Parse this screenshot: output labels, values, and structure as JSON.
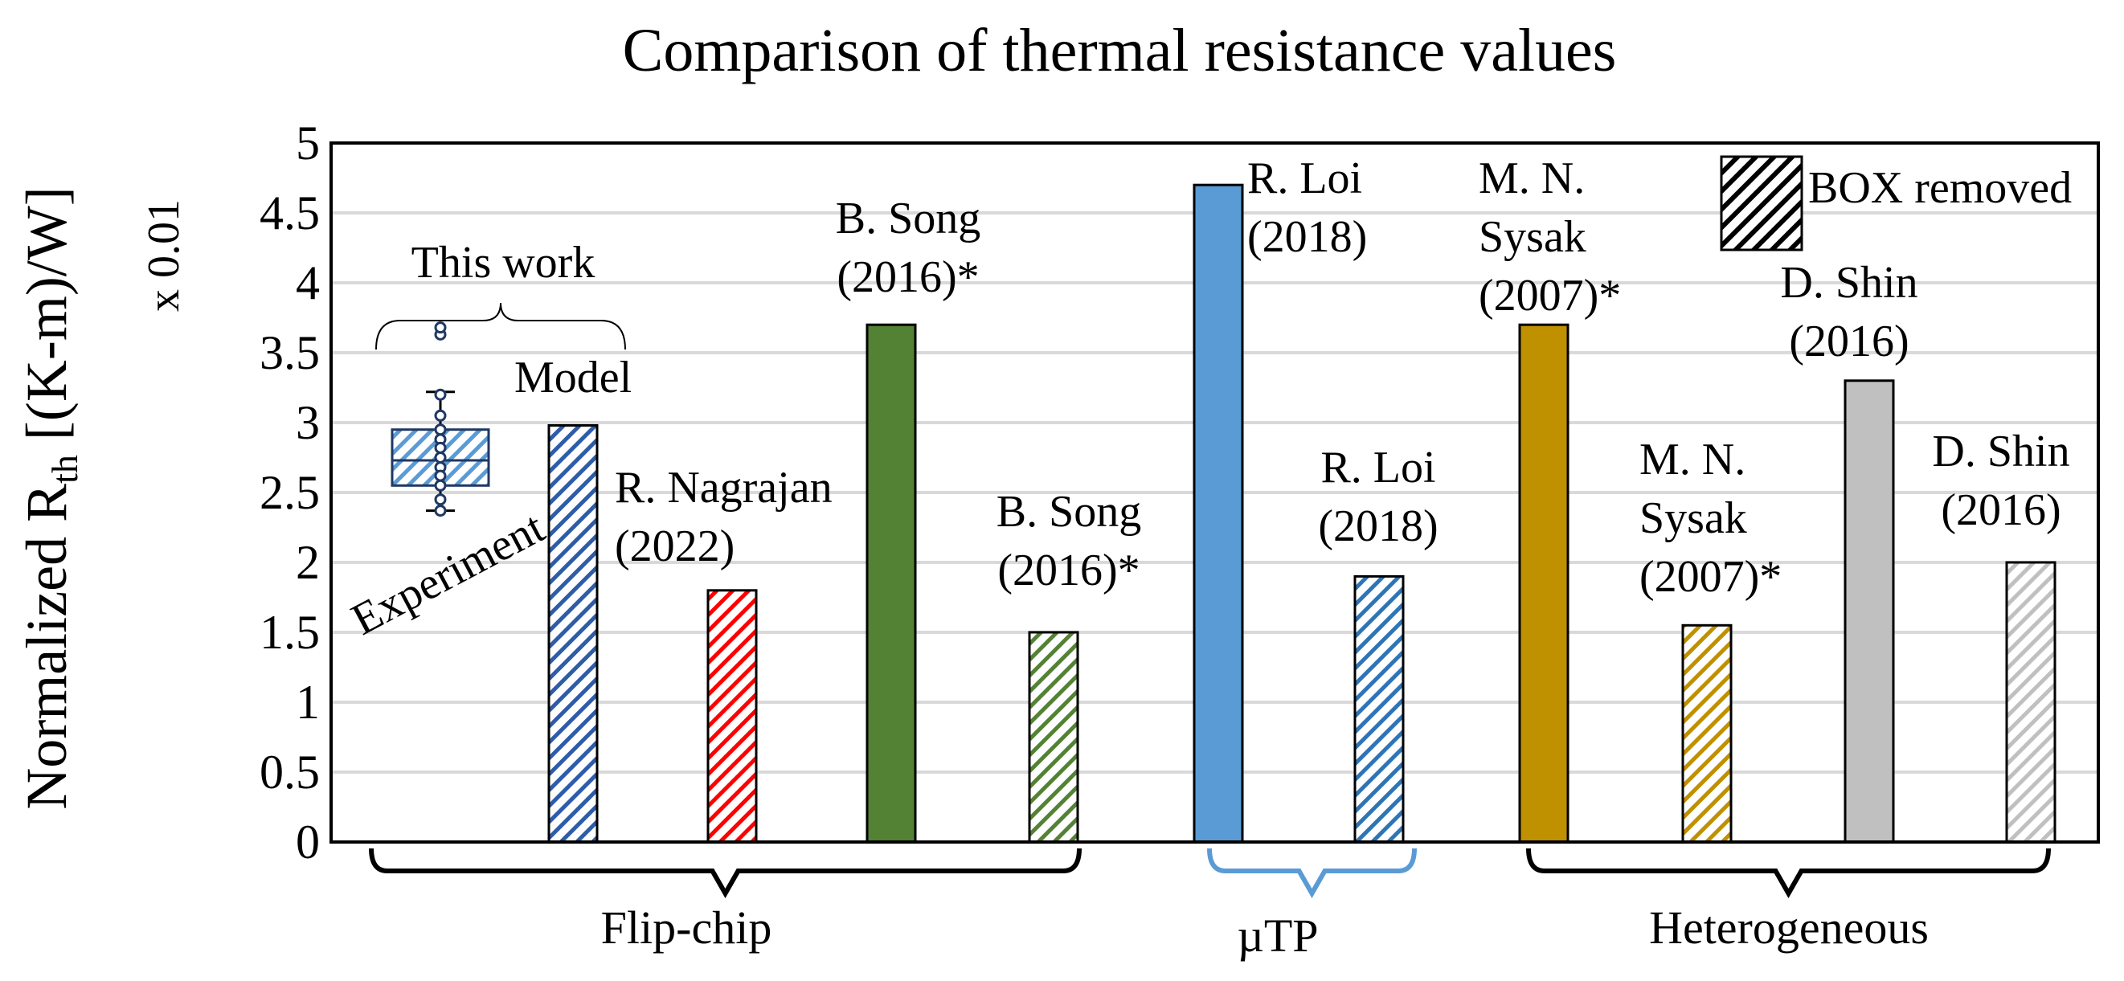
{
  "chart_data": {
    "type": "bar",
    "title": "Comparison of thermal resistance values",
    "ylabel_main": "Normalized R",
    "ylabel_sub": "th",
    "ylabel_unit": " [(K-m)/W]",
    "yscale_label": "x 0.01",
    "ylim": [
      0,
      5
    ],
    "yticks": [
      "0",
      "0.5",
      "1",
      "1.5",
      "2",
      "2.5",
      "3",
      "3.5",
      "4",
      "4.5",
      "5"
    ],
    "grid": true,
    "legend": {
      "label": "BOX removed",
      "position": "top-right"
    },
    "bars": [
      {
        "name": "this-work-model",
        "value": 2.98,
        "color": "#2e5ca8",
        "hatched": true,
        "label_lines": [
          "Model"
        ]
      },
      {
        "name": "nagrajan-2022",
        "value": 1.8,
        "color": "#ff0000",
        "hatched": true,
        "label_lines": [
          "R. Nagrajan",
          "(2022)"
        ]
      },
      {
        "name": "song-2016-solid",
        "value": 3.7,
        "color": "#548235",
        "hatched": false,
        "label_lines": [
          "B. Song",
          "(2016)*"
        ]
      },
      {
        "name": "song-2016-box",
        "value": 1.5,
        "color": "#548235",
        "hatched": true,
        "label_lines": [
          "B. Song",
          "(2016)*"
        ]
      },
      {
        "name": "loi-2018-solid",
        "value": 4.7,
        "color": "#5b9bd5",
        "hatched": false,
        "label_lines": [
          "R. Loi",
          "(2018)"
        ]
      },
      {
        "name": "loi-2018-box",
        "value": 1.9,
        "color": "#2e75b6",
        "hatched": true,
        "label_lines": [
          "R. Loi",
          "(2018)"
        ]
      },
      {
        "name": "sysak-2007-solid",
        "value": 3.7,
        "color": "#bf9000",
        "hatched": false,
        "label_lines": [
          "M. N.",
          "Sysak",
          "(2007)*"
        ]
      },
      {
        "name": "sysak-2007-box",
        "value": 1.55,
        "color": "#bf9000",
        "hatched": true,
        "label_lines": [
          "M. N.",
          "Sysak",
          "(2007)*"
        ]
      },
      {
        "name": "shin-2016-solid",
        "value": 3.3,
        "color": "#c0c0c0",
        "hatched": false,
        "label_lines": [
          "D. Shin",
          "(2016)"
        ]
      },
      {
        "name": "shin-2016-box",
        "value": 2.0,
        "color": "#c0c0c0",
        "hatched": true,
        "label_lines": [
          "D. Shin",
          "(2016)"
        ]
      }
    ],
    "experiment": {
      "label": "Experiment",
      "group_label": "This work",
      "q1": 2.55,
      "median": 2.73,
      "q3": 2.95,
      "whisker_low": 2.37,
      "whisker_high": 3.22,
      "points": [
        3.63,
        3.68,
        3.2,
        3.05,
        2.95,
        2.88,
        2.82,
        2.75,
        2.68,
        2.62,
        2.55,
        2.45,
        2.37
      ]
    },
    "groups": [
      {
        "name": "flip-chip",
        "label": "Flip-chip",
        "color": "#000000"
      },
      {
        "name": "utp",
        "label": "µTP",
        "color": "#5b9bd5"
      },
      {
        "name": "heterogeneous",
        "label": "Heterogeneous",
        "color": "#000000"
      }
    ]
  }
}
